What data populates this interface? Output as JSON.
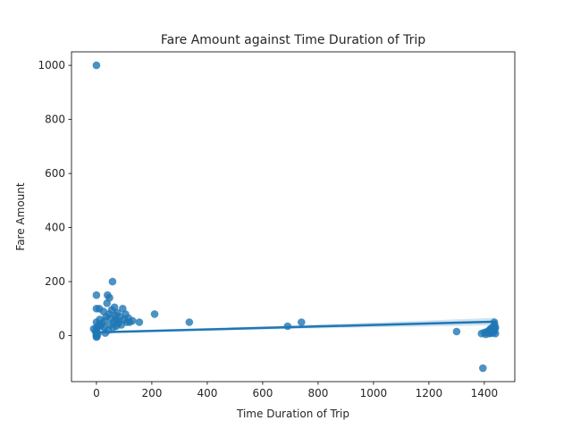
{
  "chart_data": {
    "type": "scatter",
    "title": "Fare Amount against Time Duration of Trip",
    "xlabel": "Time Duration of Trip",
    "ylabel": "Fare Amount",
    "xlim": [
      -90,
      1510
    ],
    "ylim": [
      -170,
      1050
    ],
    "xticks": [
      0,
      200,
      400,
      600,
      800,
      1000,
      1200,
      1400
    ],
    "yticks": [
      0,
      200,
      400,
      600,
      800,
      1000
    ],
    "grid": false,
    "colors": {
      "points": "#1f77b4",
      "band": "#a6c8e4"
    },
    "points": [
      [
        0,
        1000
      ],
      [
        0,
        150
      ],
      [
        0,
        100
      ],
      [
        0,
        50
      ],
      [
        0,
        30
      ],
      [
        0,
        20
      ],
      [
        0,
        10
      ],
      [
        0,
        5
      ],
      [
        0,
        0
      ],
      [
        0,
        -5
      ],
      [
        -10,
        25
      ],
      [
        -3,
        15
      ],
      [
        2,
        -3
      ],
      [
        5,
        8
      ],
      [
        8,
        40
      ],
      [
        10,
        100
      ],
      [
        12,
        60
      ],
      [
        15,
        35
      ],
      [
        20,
        45
      ],
      [
        25,
        90
      ],
      [
        28,
        30
      ],
      [
        30,
        55
      ],
      [
        32,
        10
      ],
      [
        35,
        70
      ],
      [
        38,
        120
      ],
      [
        40,
        150
      ],
      [
        42,
        20
      ],
      [
        45,
        80
      ],
      [
        47,
        140
      ],
      [
        50,
        40
      ],
      [
        52,
        65
      ],
      [
        55,
        95
      ],
      [
        58,
        200
      ],
      [
        60,
        30
      ],
      [
        62,
        50
      ],
      [
        65,
        105
      ],
      [
        68,
        75
      ],
      [
        70,
        60
      ],
      [
        72,
        35
      ],
      [
        75,
        85
      ],
      [
        78,
        45
      ],
      [
        80,
        55
      ],
      [
        85,
        70
      ],
      [
        90,
        40
      ],
      [
        95,
        100
      ],
      [
        100,
        60
      ],
      [
        105,
        80
      ],
      [
        110,
        50
      ],
      [
        115,
        65
      ],
      [
        120,
        50
      ],
      [
        130,
        55
      ],
      [
        155,
        50
      ],
      [
        210,
        80
      ],
      [
        335,
        50
      ],
      [
        690,
        35
      ],
      [
        740,
        50
      ],
      [
        1300,
        15
      ],
      [
        1395,
        -120
      ],
      [
        1390,
        8
      ],
      [
        1400,
        12
      ],
      [
        1405,
        5
      ],
      [
        1410,
        15
      ],
      [
        1415,
        10
      ],
      [
        1418,
        20
      ],
      [
        1420,
        8
      ],
      [
        1422,
        25
      ],
      [
        1425,
        15
      ],
      [
        1428,
        30
      ],
      [
        1430,
        10
      ],
      [
        1432,
        20
      ],
      [
        1435,
        15
      ],
      [
        1436,
        50
      ],
      [
        1438,
        25
      ],
      [
        1440,
        30
      ],
      [
        1440,
        8
      ],
      [
        1437,
        40
      ]
    ],
    "regression": {
      "x": [
        -10,
        1440
      ],
      "y": [
        12,
        52
      ]
    }
  }
}
